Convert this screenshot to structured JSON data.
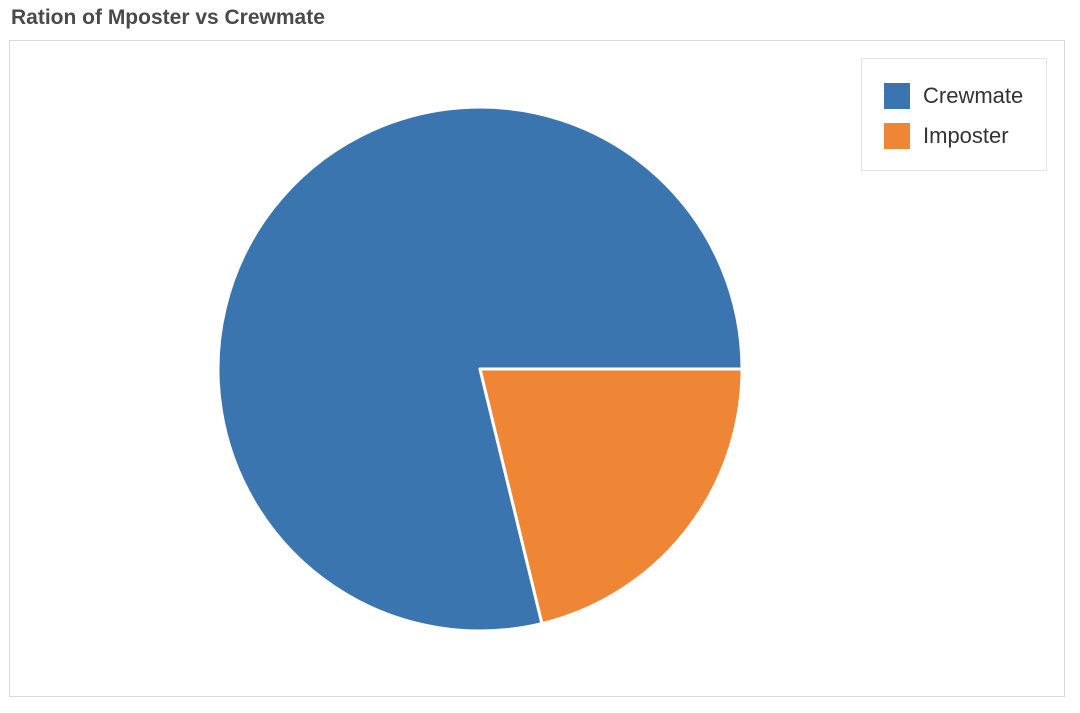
{
  "title": "Ration of Mposter vs Crewmate",
  "chart_data": {
    "type": "pie",
    "title": "Ration of Mposter vs Crewmate",
    "slices": [
      {
        "label": "Crewmate",
        "value": 78.8,
        "color": "#3b75af"
      },
      {
        "label": "Imposter",
        "value": 21.2,
        "color": "#ef8636"
      }
    ],
    "legend_position": "top-right",
    "start_angle_deg": 0,
    "direction": "counterclockwise"
  }
}
